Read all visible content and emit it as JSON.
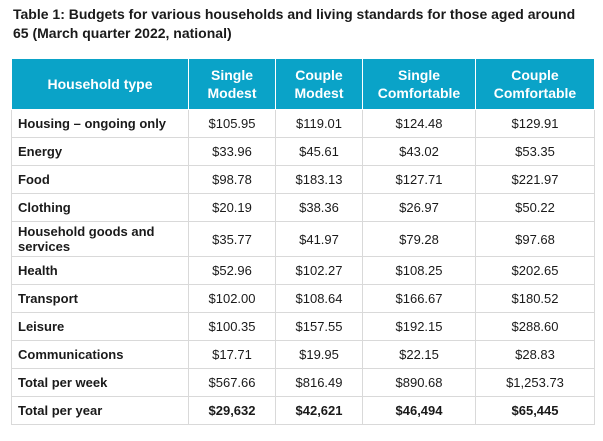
{
  "caption": "Table 1: Budgets for various households and living standards for those aged around 65 (March quarter 2022, national)",
  "table": {
    "headers": [
      "Household type",
      "Single Modest",
      "Couple Modest",
      "Single Comfortable",
      "Couple Comfortable"
    ],
    "rows": [
      {
        "label": "Housing – ongoing only",
        "values": [
          "$105.95",
          "$119.01",
          "$124.48",
          "$129.91"
        ]
      },
      {
        "label": "Energy",
        "values": [
          "$33.96",
          "$45.61",
          "$43.02",
          "$53.35"
        ]
      },
      {
        "label": "Food",
        "values": [
          "$98.78",
          "$183.13",
          "$127.71",
          "$221.97"
        ]
      },
      {
        "label": "Clothing",
        "values": [
          "$20.19",
          "$38.36",
          "$26.97",
          "$50.22"
        ]
      },
      {
        "label": "Household goods and services",
        "values": [
          "$35.77",
          "$41.97",
          "$79.28",
          "$97.68"
        ]
      },
      {
        "label": "Health",
        "values": [
          "$52.96",
          "$102.27",
          "$108.25",
          "$202.65"
        ]
      },
      {
        "label": "Transport",
        "values": [
          "$102.00",
          "$108.64",
          "$166.67",
          "$180.52"
        ]
      },
      {
        "label": "Leisure",
        "values": [
          "$100.35",
          "$157.55",
          "$192.15",
          "$288.60"
        ]
      },
      {
        "label": "Communications",
        "values": [
          "$17.71",
          "$19.95",
          "$22.15",
          "$28.83"
        ]
      },
      {
        "label": "Total per week",
        "values": [
          "$567.66",
          "$816.49",
          "$890.68",
          "$1,253.73"
        ]
      },
      {
        "label": "Total per year",
        "values": [
          "$29,632",
          "$42,621",
          "$46,494",
          "$65,445"
        ]
      }
    ]
  },
  "colors": {
    "header_background": "#0aa3c8",
    "header_text": "#ffffff",
    "grid_line": "#d9d9d9"
  }
}
